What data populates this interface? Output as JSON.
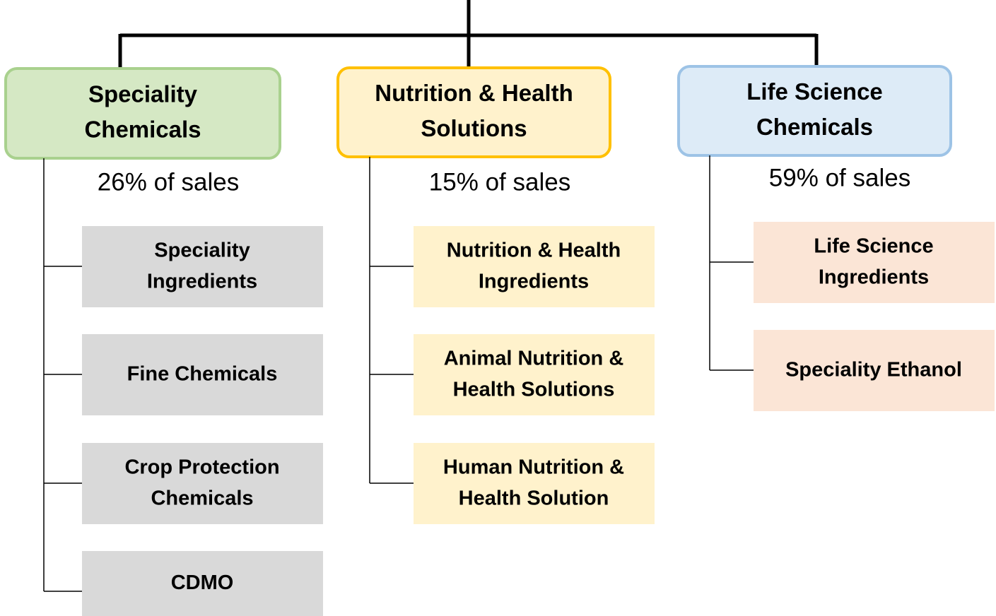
{
  "divisions": [
    {
      "title_lines": [
        "Speciality",
        "Chemicals"
      ],
      "sales": "26% of sales",
      "segments": [
        [
          "Speciality",
          "Ingredients"
        ],
        [
          "Fine Chemicals"
        ],
        [
          "Crop Protection",
          "Chemicals"
        ],
        [
          "CDMO"
        ]
      ]
    },
    {
      "title_lines": [
        "Nutrition & Health",
        "Solutions"
      ],
      "sales": "15% of sales",
      "segments": [
        [
          "Nutrition & Health",
          "Ingredients"
        ],
        [
          "Animal Nutrition &",
          "Health Solutions"
        ],
        [
          "Human Nutrition &",
          "Health Solution"
        ]
      ]
    },
    {
      "title_lines": [
        "Life Science",
        "Chemicals"
      ],
      "sales": "59% of sales",
      "segments": [
        [
          "Life Science",
          "Ingredients"
        ],
        [
          "Speciality Ethanol"
        ]
      ]
    }
  ]
}
